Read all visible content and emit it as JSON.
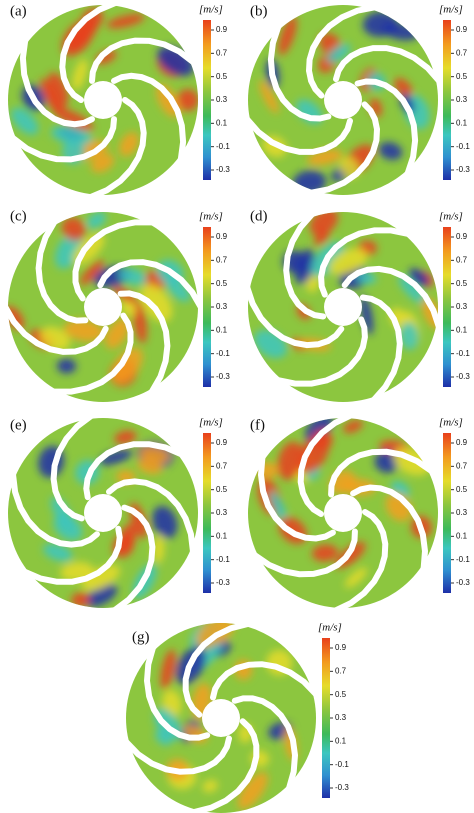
{
  "panels": [
    {
      "label": "(a)",
      "unit": "[m/s]",
      "ticks": [
        0.9,
        0.7,
        0.5,
        0.3,
        0.1,
        -0.1,
        -0.3
      ]
    },
    {
      "label": "(b)",
      "unit": "[m/s]",
      "ticks": [
        0.9,
        0.7,
        0.5,
        0.3,
        0.1,
        -0.1,
        -0.3
      ]
    },
    {
      "label": "(c)",
      "unit": "[m/s]",
      "ticks": [
        0.9,
        0.7,
        0.5,
        0.3,
        0.1,
        -0.1,
        -0.3
      ]
    },
    {
      "label": "(d)",
      "unit": "[m/s]",
      "ticks": [
        0.9,
        0.7,
        0.5,
        0.3,
        0.1,
        -0.1,
        -0.3
      ]
    },
    {
      "label": "(e)",
      "unit": "[m/s]",
      "ticks": [
        0.9,
        0.7,
        0.5,
        0.3,
        0.1,
        -0.1,
        -0.3
      ]
    },
    {
      "label": "(f)",
      "unit": "[m/s]",
      "ticks": [
        0.9,
        0.7,
        0.5,
        0.3,
        0.1,
        -0.1,
        -0.3
      ]
    },
    {
      "label": "(g)",
      "unit": "[m/s]",
      "ticks": [
        0.9,
        0.7,
        0.5,
        0.3,
        0.1,
        -0.1,
        -0.3
      ]
    }
  ]
}
